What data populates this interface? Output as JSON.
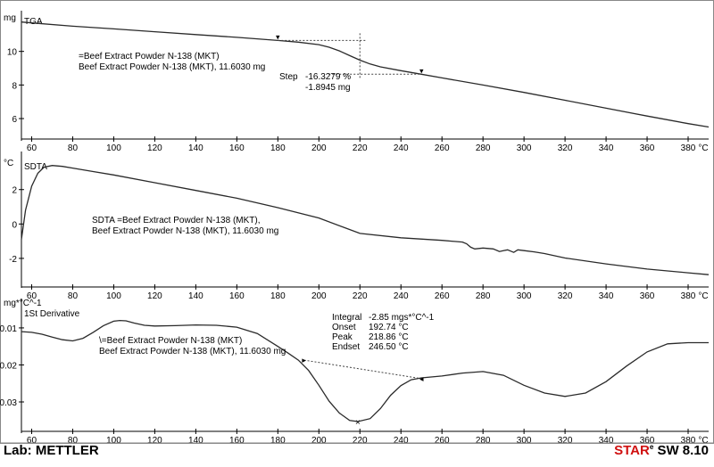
{
  "footer": {
    "lab": "Lab: METTLER",
    "software_brand": "STAR",
    "software_mark": "e",
    "software_version": "SW 8.10"
  },
  "colors": {
    "curve": "#2a2a2a",
    "axis": "#000000",
    "dotted": "#444444",
    "brand_red": "#d01010"
  },
  "chart_data": [
    {
      "type": "line",
      "panel_label": "TGA",
      "unit": "mg",
      "xlim": [
        55,
        390
      ],
      "ylim": [
        5.1,
        12.0
      ],
      "x_ticks": [
        60,
        80,
        100,
        120,
        140,
        160,
        180,
        200,
        220,
        240,
        260,
        280,
        300,
        320,
        340,
        360,
        380
      ],
      "x_unit": "°C",
      "y_ticks": [
        6,
        8,
        10
      ],
      "legend": [
        "=Beef Extract Powder N-138 (MKT)",
        "Beef Extract Powder N-138 (MKT), 11.6030 mg"
      ],
      "series": [
        {
          "x": [
            55,
            60,
            80,
            100,
            120,
            140,
            160,
            180,
            190,
            200,
            205,
            210,
            215,
            220,
            225,
            230,
            240,
            250,
            260,
            280,
            300,
            320,
            340,
            360,
            380,
            390
          ],
          "y": [
            11.75,
            11.7,
            11.5,
            11.34,
            11.17,
            11.0,
            10.84,
            10.65,
            10.55,
            10.4,
            10.25,
            10.03,
            9.75,
            9.48,
            9.25,
            9.08,
            8.85,
            8.64,
            8.42,
            8.0,
            7.56,
            7.09,
            6.62,
            6.15,
            5.7,
            5.5
          ]
        }
      ],
      "step": {
        "label": "Step",
        "percent": "-16.3279 %",
        "mass": "-1.8945 mg",
        "x_start": 180,
        "y_start": 10.65,
        "x_end": 250,
        "y_end": 8.64,
        "x_mid": 220
      }
    },
    {
      "type": "line",
      "panel_label": "SDTA",
      "unit": "°C",
      "xlim": [
        55,
        390
      ],
      "ylim": [
        -3.3,
        3.8
      ],
      "x_ticks": [
        60,
        80,
        100,
        120,
        140,
        160,
        180,
        200,
        220,
        240,
        260,
        280,
        300,
        320,
        340,
        360,
        380
      ],
      "x_unit": "°C",
      "y_ticks": [
        -2,
        0,
        2
      ],
      "legend": [
        "SDTA =Beef Extract Powder N-138 (MKT),",
        "Beef Extract Powder N-138 (MKT), 11.6030 mg"
      ],
      "series": [
        {
          "x": [
            55,
            57,
            60,
            63,
            66,
            70,
            75,
            80,
            90,
            100,
            120,
            140,
            160,
            180,
            200,
            220,
            240,
            260,
            270,
            272,
            274,
            276,
            280,
            285,
            288,
            290,
            292,
            295,
            297,
            300,
            305,
            310,
            320,
            340,
            360,
            380,
            390
          ],
          "y": [
            -0.9,
            0.8,
            2.2,
            2.95,
            3.3,
            3.4,
            3.35,
            3.25,
            3.05,
            2.85,
            2.4,
            1.95,
            1.5,
            0.95,
            0.35,
            -0.55,
            -0.8,
            -0.95,
            -1.05,
            -1.15,
            -1.35,
            -1.45,
            -1.4,
            -1.45,
            -1.6,
            -1.55,
            -1.5,
            -1.65,
            -1.5,
            -1.55,
            -1.62,
            -1.72,
            -1.98,
            -2.32,
            -2.62,
            -2.84,
            -2.95
          ]
        }
      ]
    },
    {
      "type": "line",
      "panel_label": "1St Derivative",
      "unit": "mg*°C^-1",
      "xlim": [
        55,
        390
      ],
      "ylim": [
        -0.0365,
        -0.004
      ],
      "x_ticks": [
        60,
        80,
        100,
        120,
        140,
        160,
        180,
        200,
        220,
        240,
        260,
        280,
        300,
        320,
        340,
        360,
        380
      ],
      "x_unit": "°C",
      "y_ticks": [
        -0.01,
        -0.02,
        -0.03
      ],
      "y_tick_labels": [
        "-0.01",
        "-0.02",
        "-0.03"
      ],
      "legend": [
        "\\=Beef Extract Powder N-138 (MKT)",
        "Beef Extract Powder N-138 (MKT), 11.6030 mg"
      ],
      "series": [
        {
          "x": [
            55,
            60,
            65,
            70,
            75,
            80,
            85,
            90,
            95,
            100,
            103,
            106,
            110,
            115,
            120,
            130,
            140,
            150,
            160,
            170,
            180,
            185,
            190,
            195,
            200,
            205,
            210,
            215,
            219,
            225,
            230,
            235,
            240,
            245,
            250,
            260,
            270,
            280,
            290,
            300,
            310,
            320,
            330,
            340,
            350,
            360,
            370,
            380,
            390
          ],
          "y": [
            -0.011,
            -0.0112,
            -0.0117,
            -0.0125,
            -0.0132,
            -0.0135,
            -0.0128,
            -0.0112,
            -0.0094,
            -0.0082,
            -0.008,
            -0.0081,
            -0.0087,
            -0.0093,
            -0.0095,
            -0.0094,
            -0.0092,
            -0.0093,
            -0.0098,
            -0.0115,
            -0.015,
            -0.0168,
            -0.0187,
            -0.0215,
            -0.0255,
            -0.0298,
            -0.033,
            -0.035,
            -0.0353,
            -0.0345,
            -0.0318,
            -0.0282,
            -0.0256,
            -0.024,
            -0.0235,
            -0.023,
            -0.0222,
            -0.0218,
            -0.0228,
            -0.0255,
            -0.0276,
            -0.0285,
            -0.0276,
            -0.0245,
            -0.0203,
            -0.0165,
            -0.0143,
            -0.014,
            -0.014
          ]
        }
      ],
      "integration": {
        "x_start": 192.74,
        "y_start": -0.0187,
        "x_end": 250,
        "y_end": -0.0237,
        "peak_x": 219,
        "peak_y": -0.0353
      },
      "results": [
        {
          "label": "Integral",
          "value": "-2.85 mgs*°C^-1"
        },
        {
          "label": "Onset",
          "value": "192.74 °C"
        },
        {
          "label": "Peak",
          "value": "218.86 °C"
        },
        {
          "label": "Endset",
          "value": "246.50 °C"
        }
      ]
    }
  ]
}
